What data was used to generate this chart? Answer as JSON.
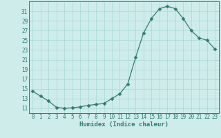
{
  "xlabel": "Humidex (Indice chaleur)",
  "x": [
    0,
    1,
    2,
    3,
    4,
    5,
    6,
    7,
    8,
    9,
    10,
    11,
    12,
    13,
    14,
    15,
    16,
    17,
    18,
    19,
    20,
    21,
    22,
    23
  ],
  "y": [
    14.5,
    13.5,
    12.5,
    11.2,
    11.0,
    11.1,
    11.3,
    11.6,
    11.8,
    12.0,
    13.0,
    14.0,
    16.0,
    21.5,
    26.5,
    29.5,
    31.5,
    32.0,
    31.5,
    29.5,
    27.0,
    25.5,
    25.0,
    23.2
  ],
  "line_color": "#2d7d6e",
  "marker": "D",
  "marker_size": 2.5,
  "bg_color": "#ceecea",
  "grid_color": "#a8d8d5",
  "xlim": [
    -0.5,
    23.5
  ],
  "ylim": [
    10,
    33
  ],
  "yticks": [
    11,
    13,
    15,
    17,
    19,
    21,
    23,
    25,
    27,
    29,
    31
  ],
  "xticks": [
    0,
    1,
    2,
    3,
    4,
    5,
    6,
    7,
    8,
    9,
    10,
    11,
    12,
    13,
    14,
    15,
    16,
    17,
    18,
    19,
    20,
    21,
    22,
    23
  ],
  "tick_fontsize": 5.5,
  "xlabel_fontsize": 6.5
}
